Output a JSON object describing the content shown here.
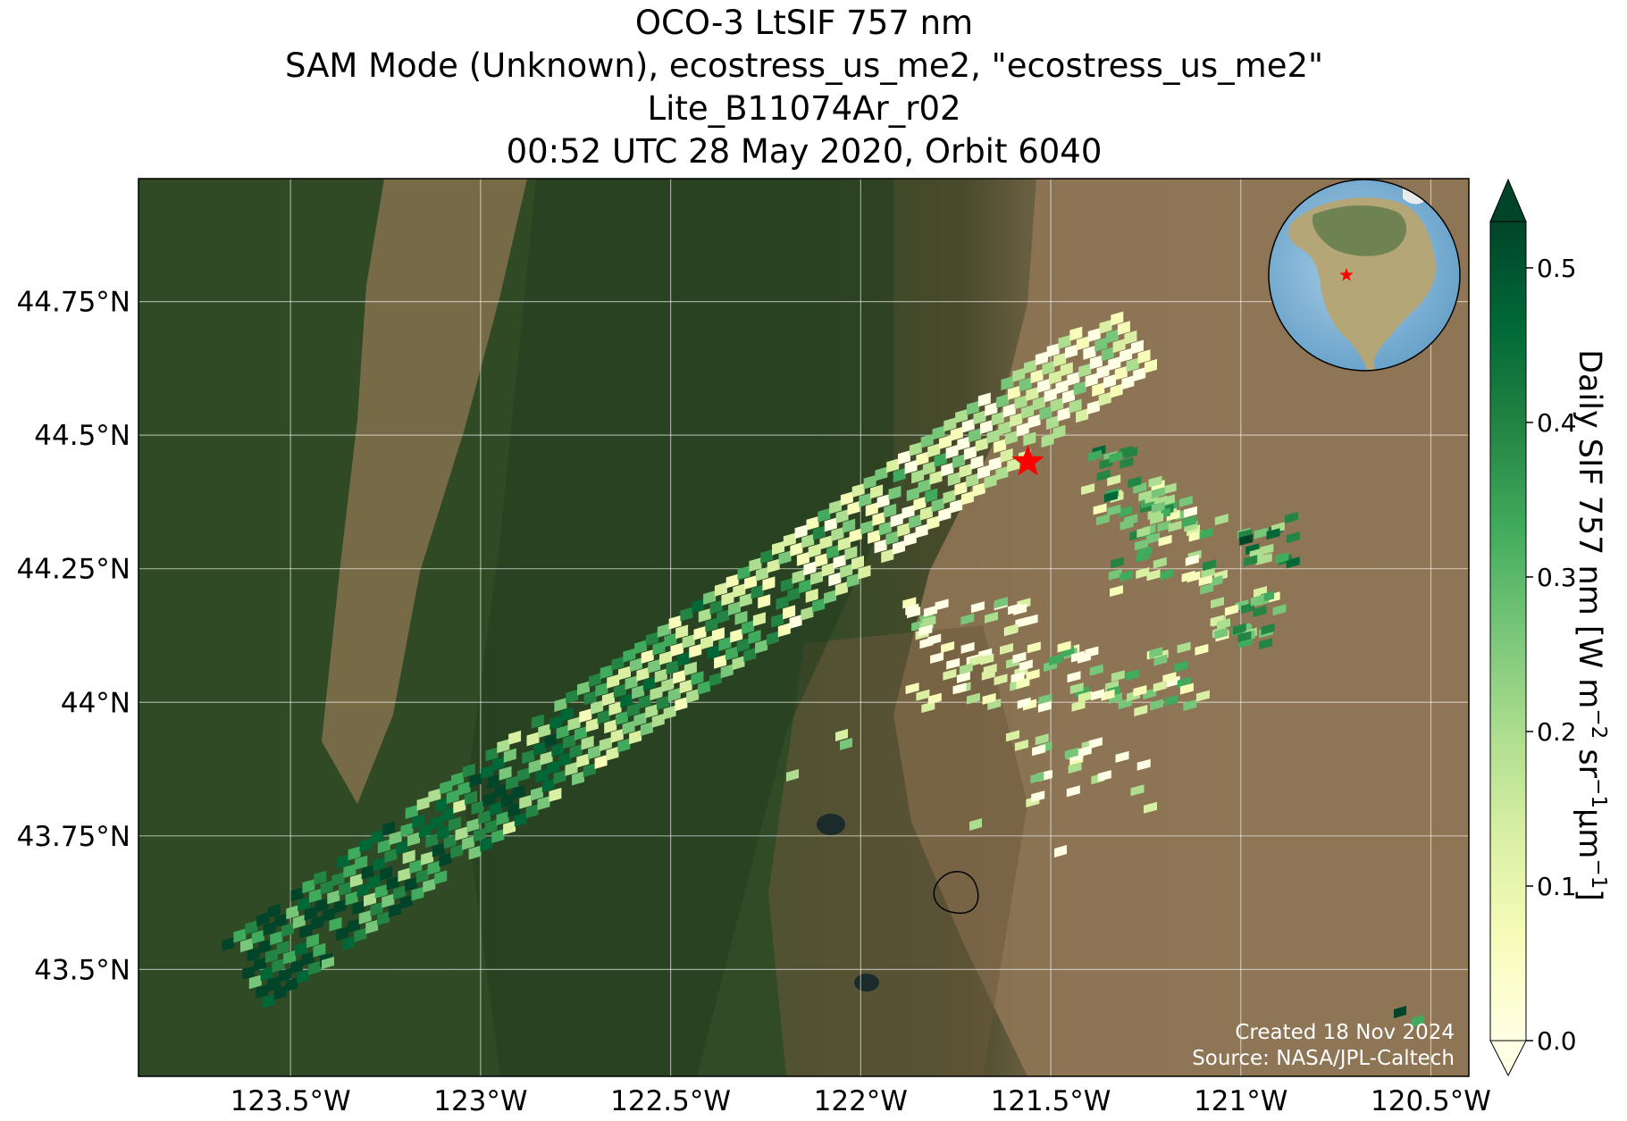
{
  "title": {
    "line1": "OCO-3 LtSIF 757 nm",
    "line2": "SAM Mode (Unknown), ecostress_us_me2, \"ecostress_us_me2\"",
    "line3": "Lite_B11074Ar_r02",
    "line4": "00:52 UTC 28 May 2020, Orbit 6040"
  },
  "map": {
    "lon_range": [
      -123.9,
      -120.4
    ],
    "lat_range": [
      43.3,
      44.98
    ],
    "x_ticks": [
      {
        "value": -123.5,
        "label": "123.5°W"
      },
      {
        "value": -123.0,
        "label": "123°W"
      },
      {
        "value": -122.5,
        "label": "122.5°W"
      },
      {
        "value": -122.0,
        "label": "122°W"
      },
      {
        "value": -121.5,
        "label": "121.5°W"
      },
      {
        "value": -121.0,
        "label": "121°W"
      },
      {
        "value": -120.5,
        "label": "120.5°W"
      }
    ],
    "y_ticks": [
      {
        "value": 44.75,
        "label": "44.75°N"
      },
      {
        "value": 44.5,
        "label": "44.5°N"
      },
      {
        "value": 44.25,
        "label": "44.25°N"
      },
      {
        "value": 44.0,
        "label": "44°N"
      },
      {
        "value": 43.75,
        "label": "43.75°N"
      },
      {
        "value": 43.5,
        "label": "43.5°N"
      }
    ],
    "site_marker": {
      "lon": -121.56,
      "lat": 44.45,
      "color": "#ff0000"
    },
    "globe_marker_color": "#ff0000"
  },
  "colorbar": {
    "label": "Daily SIF 757 nm [W m",
    "label_exp1": "−2",
    "label_mid1": " sr",
    "label_exp2": "−1",
    "label_mid2": "μm",
    "label_exp3": "−1",
    "label_end": "]",
    "range": [
      0.0,
      0.53
    ],
    "ticks": [
      {
        "value": 0.0,
        "label": "0.0"
      },
      {
        "value": 0.1,
        "label": "0.1"
      },
      {
        "value": 0.2,
        "label": "0.2"
      },
      {
        "value": 0.3,
        "label": "0.3"
      },
      {
        "value": 0.4,
        "label": "0.4"
      },
      {
        "value": 0.5,
        "label": "0.5"
      }
    ],
    "colors": [
      "#ffffe5",
      "#f7fcb9",
      "#d9f0a3",
      "#addd8e",
      "#78c679",
      "#41ab5d",
      "#238443",
      "#006837",
      "#004529"
    ]
  },
  "credits": {
    "created": "Created 18 Nov 2024",
    "source": "Source: NASA/JPL-Caltech"
  }
}
